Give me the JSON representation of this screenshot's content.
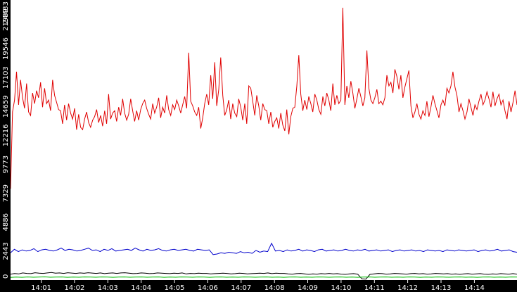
{
  "chart_data": {
    "type": "line",
    "background": "#ffffff",
    "axis_background": "#000000",
    "axis_text_color": "#ffffff",
    "grid": false,
    "legend": "none",
    "ylim": [
      0,
      21989
    ],
    "y_ticks": [
      "0",
      "2443",
      "4886",
      "7329",
      "9773",
      "12216",
      "14659",
      "17103",
      "19546",
      "21989"
    ],
    "y_tick_values": [
      0,
      2443,
      4886,
      7329,
      9773,
      12216,
      14659,
      17103,
      19546,
      21989
    ],
    "y_top_label": "24433",
    "xlim": [
      "14:00:05",
      "14:15:17"
    ],
    "x_ticks": [
      "14:01",
      "14:02",
      "14:03",
      "14:04",
      "14:05",
      "14:06",
      "14:07",
      "14:08",
      "14:09",
      "14:10",
      "14:11",
      "14:12",
      "14:13",
      "14:14"
    ],
    "x_tick_minutes": [
      1,
      2,
      3,
      4,
      5,
      6,
      7,
      8,
      9,
      10,
      11,
      12,
      13,
      14
    ],
    "x_start_minutes": 0.08,
    "x_end_minutes": 15.28,
    "series": [
      {
        "color": "#e00000",
        "values": [
          7700,
          14200,
          15200,
          17600,
          14800,
          16900,
          15400,
          14500,
          16600,
          14200,
          13900,
          15800,
          14900,
          16000,
          15400,
          16700,
          14600,
          16200,
          14900,
          15200,
          14300,
          16900,
          15600,
          15000,
          14400,
          14300,
          13200,
          14800,
          13500,
          14900,
          14100,
          13600,
          14500,
          12700,
          14000,
          12900,
          12700,
          13600,
          14200,
          13300,
          12900,
          13500,
          13800,
          14400,
          13300,
          13900,
          13000,
          14300,
          13200,
          15700,
          13600,
          14100,
          14300,
          13400,
          14600,
          13900,
          15300,
          14100,
          13500,
          14000,
          15300,
          14300,
          13400,
          14300,
          13500,
          14400,
          14900,
          15200,
          14500,
          14000,
          13600,
          14900,
          14100,
          14600,
          15400,
          13700,
          14600,
          14100,
          15600,
          14400,
          13900,
          14800,
          14400,
          15200,
          14700,
          14100,
          14800,
          15500,
          14500,
          19200,
          15100,
          14700,
          14200,
          13900,
          14600,
          12800,
          13700,
          14900,
          15700,
          14800,
          17300,
          15300,
          18400,
          14700,
          16100,
          18800,
          15600,
          13900,
          14400,
          15200,
          13600,
          14900,
          14100,
          13800,
          15300,
          14600,
          13500,
          14900,
          13200,
          16400,
          16200,
          15100,
          13900,
          15600,
          14700,
          13500,
          14900,
          14400,
          14300,
          13200,
          14200,
          12900,
          13400,
          13700,
          12800,
          14100,
          13100,
          12600,
          14400,
          12300,
          13800,
          14500,
          14600,
          16400,
          19000,
          15700,
          14300,
          15200,
          14400,
          15500,
          14900,
          14200,
          15700,
          15200,
          14400,
          14000,
          15500,
          14700,
          15800,
          15200,
          14300,
          16600,
          14800,
          15600,
          14900,
          15200,
          23000,
          14800,
          16400,
          15400,
          16800,
          15800,
          14500,
          15300,
          16200,
          15500,
          14700,
          15400,
          19400,
          16200,
          15200,
          14900,
          15400,
          16100,
          14900,
          15100,
          14800,
          15400,
          17300,
          16400,
          16700,
          15800,
          17800,
          17200,
          16100,
          17300,
          15400,
          16300,
          17000,
          17700,
          14700,
          13700,
          14200,
          14900,
          14000,
          13600,
          14300,
          13900,
          15100,
          13800,
          14600,
          15600,
          14900,
          14300,
          13700,
          14800,
          15200,
          14700,
          16200,
          15800,
          16400,
          17600,
          16300,
          15600,
          14200,
          14900,
          14300,
          13600,
          14200,
          15300,
          14600,
          13900,
          14800,
          14400,
          15100,
          15700,
          14800,
          15200,
          15900,
          15300,
          14600,
          15900,
          14700,
          15300,
          15700,
          14800,
          15200,
          14300,
          13600,
          15100,
          14200,
          15000,
          16000,
          14800
        ]
      },
      {
        "color": "#0000cc",
        "values": [
          2300,
          2600,
          2400,
          2550,
          2450,
          2500,
          2650,
          2400,
          2550,
          2600,
          2500,
          2450,
          2550,
          2700,
          2500,
          2600,
          2550,
          2450,
          2500,
          2600,
          2700,
          2500,
          2550,
          2400,
          2600,
          2500,
          2650,
          2450,
          2500,
          2550,
          2600,
          2500,
          2700,
          2550,
          2450,
          2600,
          2500,
          2550,
          2650,
          2500,
          2450,
          2550,
          2600,
          2500,
          2550,
          2600,
          2500,
          2450,
          2600,
          2550,
          2500,
          2550,
          2150,
          2200,
          2300,
          2250,
          2350,
          2300,
          2250,
          2400,
          2300,
          2350,
          2250,
          2500,
          2350,
          2450,
          2400,
          3100,
          2450,
          2500,
          2400,
          2550,
          2450,
          2500,
          2600,
          2450,
          2550,
          2500,
          2400,
          2550,
          2600,
          2450,
          2500,
          2550,
          2450,
          2500,
          2600,
          2500,
          2450,
          2550,
          2500,
          2600,
          2450,
          2500,
          2550,
          2450,
          2500,
          2550,
          2400,
          2500,
          2550,
          2450,
          2500,
          2550,
          2450,
          2500,
          2400,
          2550,
          2500,
          2450,
          2500,
          2400,
          2550,
          2500,
          2450,
          2550,
          2500,
          2450,
          2500,
          2550,
          2400,
          2500,
          2550,
          2450,
          2500,
          2600,
          2450,
          2500,
          2550,
          2400,
          2350
        ]
      },
      {
        "color": "#000000",
        "values": [
          500,
          550,
          520,
          600,
          560,
          540,
          620,
          580,
          560,
          600,
          640,
          580,
          600,
          560,
          620,
          590,
          560,
          600,
          570,
          620,
          590,
          560,
          600,
          540,
          580,
          600,
          560,
          600,
          620,
          580,
          540,
          560,
          600,
          580,
          540,
          560,
          600,
          580,
          560,
          540,
          580,
          560,
          600,
          520,
          560,
          540,
          580,
          560,
          560,
          520,
          540,
          560,
          580,
          560,
          520,
          540,
          580,
          560,
          520,
          540,
          560,
          580,
          560,
          600,
          540,
          580,
          560,
          560,
          520,
          500,
          540,
          560,
          520,
          480,
          520,
          500,
          540,
          520,
          560,
          520,
          540,
          500,
          480,
          520,
          540,
          500,
          100,
          80,
          480,
          520,
          560,
          540,
          500,
          520,
          560,
          540,
          520,
          500,
          540,
          560,
          520,
          540,
          500,
          520,
          560,
          540,
          520,
          540,
          500,
          520,
          480,
          520,
          540,
          500,
          520,
          540,
          500,
          480,
          520,
          500,
          540,
          520,
          500,
          540,
          500
        ]
      },
      {
        "color": "#00bb00",
        "values": [
          220,
          250,
          230,
          260,
          240,
          250,
          270,
          240,
          250,
          260,
          230,
          250,
          240,
          260,
          250,
          240,
          260,
          250,
          230,
          250,
          260,
          240,
          250,
          260,
          240,
          250,
          260,
          230,
          250,
          240,
          260,
          250,
          240,
          260,
          250,
          230,
          250,
          260,
          240,
          250,
          240,
          260,
          250,
          240,
          250,
          260,
          240,
          250,
          230,
          250,
          260,
          240,
          250,
          240,
          260,
          250,
          240,
          250,
          260,
          240,
          250,
          230,
          250,
          260,
          240,
          250,
          260,
          240,
          250,
          240,
          260,
          250,
          230,
          250,
          240,
          260,
          250,
          240,
          250,
          260,
          240,
          250,
          230,
          250,
          260,
          240,
          250,
          240,
          260,
          250
        ]
      }
    ]
  }
}
